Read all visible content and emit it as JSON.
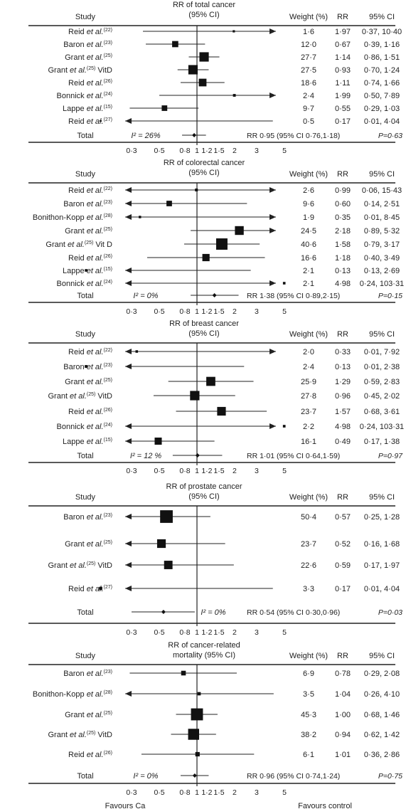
{
  "labels": {
    "study": "Study",
    "weight": "Weight (%)",
    "rr": "RR",
    "ci": "95% CI",
    "favours_left": "Favours Ca",
    "favours_right": "Favours control"
  },
  "chart_data": [
    {
      "type": "forest",
      "title": "RR of total cancer",
      "subtitle": "(95% CI)",
      "xscale": "log",
      "xticks": [
        "0·3",
        "0·5",
        "0·8",
        "1",
        "1·2",
        "1·5",
        "2",
        "3",
        "5"
      ],
      "xtick_values": [
        0.3,
        0.5,
        0.8,
        1,
        1.2,
        1.5,
        2,
        3,
        5
      ],
      "studies": [
        {
          "name": "Reid",
          "ref": "(22)",
          "suffix": "",
          "weight_text": "1·6",
          "rr_text": "1·97",
          "ci_text": "0·37, 10·40",
          "rr": 1.97,
          "lo": 0.37,
          "hi": 10.4,
          "weight": 1.6
        },
        {
          "name": "Baron",
          "ref": "(23)",
          "suffix": "",
          "weight_text": "12·0",
          "rr_text": "0·67",
          "ci_text": "0·39, 1·16",
          "rr": 0.67,
          "lo": 0.39,
          "hi": 1.16,
          "weight": 12.0
        },
        {
          "name": "Grant",
          "ref": "(25)",
          "suffix": "",
          "weight_text": "27·7",
          "rr_text": "1·14",
          "ci_text": "0·86, 1·51",
          "rr": 1.14,
          "lo": 0.86,
          "hi": 1.51,
          "weight": 27.7
        },
        {
          "name": "Grant",
          "ref": "(25)",
          "suffix": " VitD",
          "weight_text": "27·5",
          "rr_text": "0·93",
          "ci_text": "0·70, 1·24",
          "rr": 0.93,
          "lo": 0.7,
          "hi": 1.24,
          "weight": 27.5
        },
        {
          "name": "Reid",
          "ref": "(26)",
          "suffix": "",
          "weight_text": "18·6",
          "rr_text": "1·11",
          "ci_text": "0·74, 1·66",
          "rr": 1.11,
          "lo": 0.74,
          "hi": 1.66,
          "weight": 18.6
        },
        {
          "name": "Bonnick",
          "ref": "(24)",
          "suffix": "",
          "weight_text": "2·4",
          "rr_text": "1·99",
          "ci_text": "0·50, 7·89",
          "rr": 1.99,
          "lo": 0.5,
          "hi": 7.89,
          "weight": 2.4
        },
        {
          "name": "Lappe",
          "ref": "(15)",
          "suffix": "",
          "weight_text": "9·7",
          "rr_text": "0·55",
          "ci_text": "0·29, 1·03",
          "rr": 0.55,
          "lo": 0.29,
          "hi": 1.03,
          "weight": 9.7
        },
        {
          "name": "Reid",
          "ref": "(27)",
          "suffix": "",
          "weight_text": "0·5",
          "rr_text": "0·17",
          "ci_text": "0·01, 4·04",
          "rr": 0.17,
          "lo": 0.01,
          "hi": 4.04,
          "weight": 0.5
        }
      ],
      "total": {
        "label": "Total",
        "i2_text": "I² = 26%",
        "summary_text": "RR 0·95 (95% CI 0·76,1·18)",
        "p_text": "P=0·63",
        "rr": 0.95,
        "lo": 0.76,
        "hi": 1.18
      }
    },
    {
      "type": "forest",
      "title": "RR of colorectal cancer",
      "subtitle": "(95% CI)",
      "xscale": "log",
      "xticks": [
        "0·3",
        "0·5",
        "0·8",
        "1",
        "1·2",
        "1·5",
        "2",
        "3",
        "5"
      ],
      "xtick_values": [
        0.3,
        0.5,
        0.8,
        1,
        1.2,
        1.5,
        2,
        3,
        5
      ],
      "studies": [
        {
          "name": "Reid",
          "ref": "(22)",
          "suffix": "",
          "weight_text": "2·6",
          "rr_text": "0·99",
          "ci_text": "0·06, 15·43",
          "rr": 0.99,
          "lo": 0.06,
          "hi": 15.43,
          "weight": 2.6
        },
        {
          "name": "Baron",
          "ref": "(23)",
          "suffix": "",
          "weight_text": "9·6",
          "rr_text": "0·60",
          "ci_text": "0·14, 2·51",
          "rr": 0.6,
          "lo": 0.14,
          "hi": 2.51,
          "weight": 9.6
        },
        {
          "name": "Bonithon-Kopp",
          "ref": "(28)",
          "suffix": "",
          "weight_text": "1·9",
          "rr_text": "0·35",
          "ci_text": "0·01, 8·45",
          "rr": 0.35,
          "lo": 0.01,
          "hi": 8.45,
          "weight": 1.9
        },
        {
          "name": "Grant",
          "ref": "(25)",
          "suffix": "",
          "weight_text": "24·5",
          "rr_text": "2·18",
          "ci_text": "0·89, 5·32",
          "rr": 2.18,
          "lo": 0.89,
          "hi": 5.32,
          "weight": 24.5
        },
        {
          "name": "Grant",
          "ref": "(25)",
          "suffix": " Vit D",
          "weight_text": "40·6",
          "rr_text": "1·58",
          "ci_text": "0·79, 3·17",
          "rr": 1.58,
          "lo": 0.79,
          "hi": 3.17,
          "weight": 40.6
        },
        {
          "name": "Reid",
          "ref": "(26)",
          "suffix": "",
          "weight_text": "16·6",
          "rr_text": "1·18",
          "ci_text": "0·40, 3·49",
          "rr": 1.18,
          "lo": 0.4,
          "hi": 3.49,
          "weight": 16.6
        },
        {
          "name": "Lappe",
          "ref": "(15)",
          "suffix": "",
          "weight_text": "2·1",
          "rr_text": "0·13",
          "ci_text": "0·13, 2·69",
          "rr": 0.13,
          "lo": 0.13,
          "hi": 2.69,
          "weight": 2.1
        },
        {
          "name": "Bonnick",
          "ref": "(24)",
          "suffix": "",
          "weight_text": "2·1",
          "rr_text": "4·98",
          "ci_text": "0·24, 103·31",
          "rr": 4.98,
          "lo": 0.24,
          "hi": 103.31,
          "weight": 2.1
        }
      ],
      "total": {
        "label": "Total",
        "i2_text": "I² = 0%",
        "summary_text": "RR 1·38 (95% CI 0·89,2·15)",
        "p_text": "P=0·15",
        "rr": 1.38,
        "lo": 0.89,
        "hi": 2.15
      }
    },
    {
      "type": "forest",
      "title": "RR of breast cancer",
      "subtitle": "(95% CI)",
      "xscale": "log",
      "xticks": [
        "0·3",
        "0·5",
        "0·8",
        "1",
        "1·2",
        "1·5",
        "2",
        "3",
        "5"
      ],
      "xtick_values": [
        0.3,
        0.5,
        0.8,
        1,
        1.2,
        1.5,
        2,
        3,
        5
      ],
      "studies": [
        {
          "name": "Reid",
          "ref": "(22)",
          "suffix": "",
          "weight_text": "2·0",
          "rr_text": "0·33",
          "ci_text": "0·01, 7·92",
          "rr": 0.33,
          "lo": 0.01,
          "hi": 7.92,
          "weight": 2.0
        },
        {
          "name": "Baron",
          "ref": "(23)",
          "suffix": "",
          "weight_text": "2·4",
          "rr_text": "0·13",
          "ci_text": "0·01, 2·38",
          "rr": 0.13,
          "lo": 0.01,
          "hi": 2.38,
          "weight": 2.4
        },
        {
          "name": "Grant",
          "ref": "(25)",
          "suffix": "",
          "weight_text": "25·9",
          "rr_text": "1·29",
          "ci_text": "0·59, 2·83",
          "rr": 1.29,
          "lo": 0.59,
          "hi": 2.83,
          "weight": 25.9
        },
        {
          "name": "Grant",
          "ref": "(25)",
          "suffix": " VitD",
          "weight_text": "27·8",
          "rr_text": "0·96",
          "ci_text": "0·45, 2·02",
          "rr": 0.96,
          "lo": 0.45,
          "hi": 2.02,
          "weight": 27.8
        },
        {
          "name": "Reid",
          "ref": "(26)",
          "suffix": "",
          "weight_text": "23·7",
          "rr_text": "1·57",
          "ci_text": "0·68, 3·61",
          "rr": 1.57,
          "lo": 0.68,
          "hi": 3.61,
          "weight": 23.7
        },
        {
          "name": "Bonnick",
          "ref": "(24)",
          "suffix": "",
          "weight_text": "2·2",
          "rr_text": "4·98",
          "ci_text": "0·24, 103·31",
          "rr": 4.98,
          "lo": 0.24,
          "hi": 103.31,
          "weight": 2.2
        },
        {
          "name": "Lappe",
          "ref": "(15)",
          "suffix": "",
          "weight_text": "16·1",
          "rr_text": "0·49",
          "ci_text": "0·17, 1·38",
          "rr": 0.49,
          "lo": 0.17,
          "hi": 1.38,
          "weight": 16.1
        }
      ],
      "total": {
        "label": "Total",
        "i2_text": "I² = 12 %",
        "summary_text": "RR 1·01 (95% CI 0·64,1·59)",
        "p_text": "P=0·97",
        "rr": 1.01,
        "lo": 0.64,
        "hi": 1.59
      }
    },
    {
      "type": "forest",
      "title": "RR of prostate cancer",
      "subtitle": "(95% CI)",
      "xscale": "log",
      "xticks": [
        "0·3",
        "0·5",
        "0·8",
        "1",
        "1·2",
        "1·5",
        "2",
        "3",
        "5"
      ],
      "xtick_values": [
        0.3,
        0.5,
        0.8,
        1,
        1.2,
        1.5,
        2,
        3,
        5
      ],
      "studies": [
        {
          "name": "Baron",
          "ref": "(23)",
          "suffix": "",
          "weight_text": "50·4",
          "rr_text": "0·57",
          "ci_text": "0·25, 1·28",
          "rr": 0.57,
          "lo": 0.25,
          "hi": 1.28,
          "weight": 50.4
        },
        {
          "name": "Grant",
          "ref": "(25)",
          "suffix": "",
          "weight_text": "23·7",
          "rr_text": "0·52",
          "ci_text": "0·16, 1·68",
          "rr": 0.52,
          "lo": 0.16,
          "hi": 1.68,
          "weight": 23.7
        },
        {
          "name": "Grant",
          "ref": "(25)",
          "suffix": " VitD",
          "weight_text": "22·6",
          "rr_text": "0·59",
          "ci_text": "0·17, 1·97",
          "rr": 0.59,
          "lo": 0.17,
          "hi": 1.97,
          "weight": 22.6
        },
        {
          "name": "Reid",
          "ref": "(27)",
          "suffix": "",
          "weight_text": "3·3",
          "rr_text": "0·17",
          "ci_text": "0·01, 4·04",
          "rr": 0.17,
          "lo": 0.01,
          "hi": 4.04,
          "weight": 3.3
        }
      ],
      "total": {
        "label": "Total",
        "i2_text": "I² = 0%",
        "summary_text": "RR 0·54 (95% CI 0·30,0·96)",
        "p_text": "P=0·03",
        "rr": 0.54,
        "lo": 0.3,
        "hi": 0.96
      }
    },
    {
      "type": "forest",
      "title": "RR of cancer-related",
      "subtitle": "mortality (95% CI)",
      "xscale": "log",
      "xticks": [
        "0·3",
        "0·5",
        "0·8",
        "1",
        "1·2",
        "1·5",
        "2",
        "3",
        "5"
      ],
      "xtick_values": [
        0.3,
        0.5,
        0.8,
        1,
        1.2,
        1.5,
        2,
        3,
        5
      ],
      "studies": [
        {
          "name": "Baron",
          "ref": "(23)",
          "suffix": "",
          "weight_text": "6·9",
          "rr_text": "0·78",
          "ci_text": "0·29, 2·08",
          "rr": 0.78,
          "lo": 0.29,
          "hi": 2.08,
          "weight": 6.9
        },
        {
          "name": "Bonithon-Kopp",
          "ref": "(28)",
          "suffix": "",
          "weight_text": "3·5",
          "rr_text": "1·04",
          "ci_text": "0·26, 4·10",
          "rr": 1.04,
          "lo": 0.26,
          "hi": 4.1,
          "weight": 3.5
        },
        {
          "name": "Grant",
          "ref": "(25)",
          "suffix": "",
          "weight_text": "45·3",
          "rr_text": "1·00",
          "ci_text": "0·68, 1·46",
          "rr": 1.0,
          "lo": 0.68,
          "hi": 1.46,
          "weight": 45.3
        },
        {
          "name": "Grant",
          "ref": "(25)",
          "suffix": " VitD",
          "weight_text": "38·2",
          "rr_text": "0·94",
          "ci_text": "0·62, 1·42",
          "rr": 0.94,
          "lo": 0.62,
          "hi": 1.42,
          "weight": 38.2
        },
        {
          "name": "Reid",
          "ref": "(26)",
          "suffix": "",
          "weight_text": "6·1",
          "rr_text": "1·01",
          "ci_text": "0·36, 2·86",
          "rr": 1.01,
          "lo": 0.36,
          "hi": 2.86,
          "weight": 6.1
        }
      ],
      "total": {
        "label": "Total",
        "i2_text": "I² = 0%",
        "summary_text": "RR 0·96 (95% CI 0·74,1·24)",
        "p_text": "P=0·75",
        "rr": 0.96,
        "lo": 0.74,
        "hi": 1.24
      }
    }
  ]
}
